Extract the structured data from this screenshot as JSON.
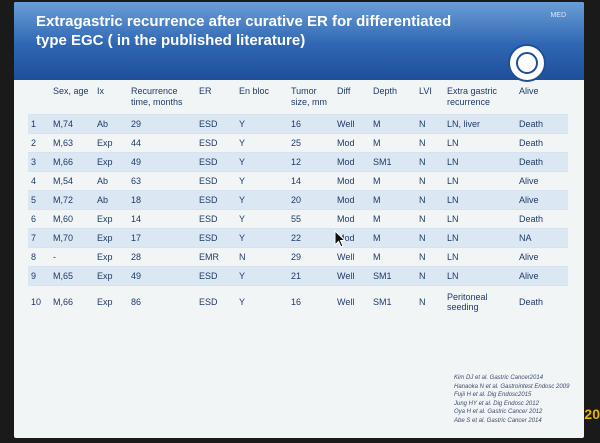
{
  "slide": {
    "title_line1": "Extragastric recurrence after curative ER for differentiated",
    "title_line2": "type EGC ( in the published literature)",
    "header_small": "MED"
  },
  "table": {
    "headers": [
      "",
      "Sex, age",
      "Ix",
      "Recurrence time, months",
      "ER",
      "En bloc",
      "Tumor size, mm",
      "Diff",
      "Depth",
      "LVI",
      "Extra gastric recurrence",
      "Alive"
    ],
    "rows": [
      [
        "1",
        "M,74",
        "Ab",
        "29",
        "ESD",
        "Y",
        "16",
        "Well",
        "M",
        "N",
        "LN, liver",
        "Death"
      ],
      [
        "2",
        "M,63",
        "Exp",
        "44",
        "ESD",
        "Y",
        "25",
        "Mod",
        "M",
        "N",
        "LN",
        "Death"
      ],
      [
        "3",
        "M,66",
        "Exp",
        "49",
        "ESD",
        "Y",
        "12",
        "Mod",
        "SM1",
        "N",
        "LN",
        "Death"
      ],
      [
        "4",
        "M,54",
        "Ab",
        "63",
        "ESD",
        "Y",
        "14",
        "Mod",
        "M",
        "N",
        "LN",
        "Alive"
      ],
      [
        "5",
        "M,72",
        "Ab",
        "18",
        "ESD",
        "Y",
        "20",
        "Mod",
        "M",
        "N",
        "LN",
        "Alive"
      ],
      [
        "6",
        "M,60",
        "Exp",
        "14",
        "ESD",
        "Y",
        "55",
        "Mod",
        "M",
        "N",
        "LN",
        "Death"
      ],
      [
        "7",
        "M,70",
        "Exp",
        "17",
        "ESD",
        "Y",
        "22",
        "Mod",
        "M",
        "N",
        "LN",
        "NA"
      ],
      [
        "8",
        "-",
        "Exp",
        "28",
        "EMR",
        "N",
        "29",
        "Well",
        "M",
        "N",
        "LN",
        "Alive"
      ],
      [
        "9",
        "M,65",
        "Exp",
        "49",
        "ESD",
        "Y",
        "21",
        "Well",
        "SM1",
        "N",
        "LN",
        "Alive"
      ],
      [
        "10",
        "M,66",
        "Exp",
        "86",
        "ESD",
        "Y",
        "16",
        "Well",
        "SM1",
        "N",
        "Peritoneal seeding",
        "Death"
      ]
    ]
  },
  "citations": [
    "Kim DJ et al. Gastric Cancer2014",
    "Hanaoka N et al. Gastrointest Endosc 2009",
    "Fujii H et al. Dig Endosc2015",
    "Jung HY et al. Dig Endosc 2012",
    "Oya H et al. Gastric Cancer 2012",
    "Abe S et al. Gastric Cancer 2014"
  ],
  "side_number": "20",
  "colors": {
    "header_top": "#6b9ed6",
    "header_bottom": "#1f4f9a",
    "row_alt": "#dbe7f3",
    "text": "#1f3a66"
  },
  "icons": {
    "logo": "university-seal-icon",
    "cursor": "mouse-pointer-icon"
  }
}
